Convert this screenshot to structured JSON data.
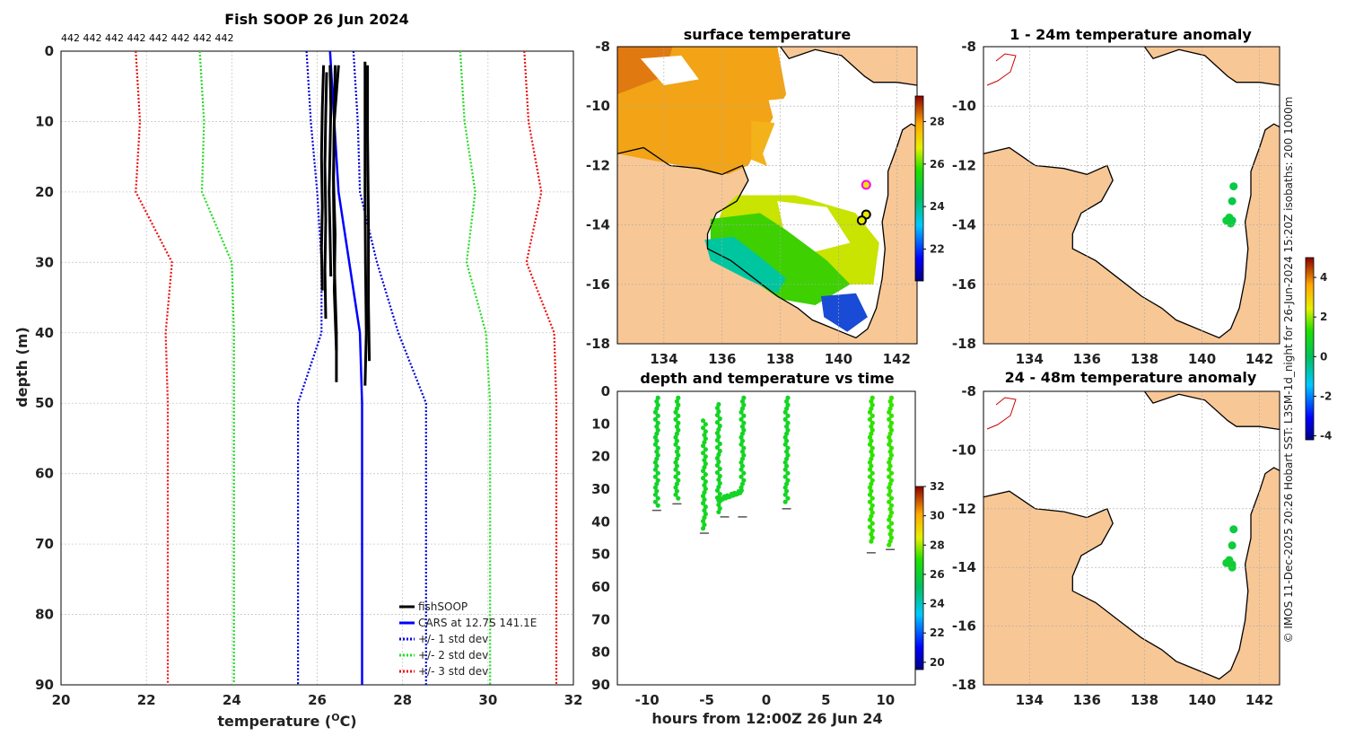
{
  "colors": {
    "land": "#f8c796",
    "fishsoop": "#000000",
    "cars": "#0000ff",
    "std1": "#0000dd",
    "std2": "#22dd22",
    "std3": "#ee1111",
    "grid": "#c8c8c8"
  },
  "credit": "© IMOS 11-Dec-2025 20:26 Hobart SST: L3SM-1d_night for 26-Jun-2024 15:20Z isobaths: 200  1000m",
  "chart_data": [
    {
      "id": "profile",
      "type": "line",
      "title": "Fish SOOP 26 Jun 2024",
      "subtitle": "442 442 442 442 442 442 442 442",
      "xlabel": "temperature (oC)",
      "ylabel": "depth (m)",
      "xlim": [
        20,
        32
      ],
      "ylim": [
        0,
        90
      ],
      "xticks": [
        20,
        22,
        24,
        26,
        28,
        30,
        32
      ],
      "yticks": [
        0,
        10,
        20,
        30,
        40,
        50,
        60,
        70,
        80,
        90
      ],
      "legend": [
        "fishSOOP",
        "CARS at 12.7S 141.1E",
        "+/- 1 std dev",
        "+/- 2 std dev",
        "+/- 3 std dev"
      ],
      "cars": {
        "depth": [
          0,
          10,
          20,
          30,
          40,
          50,
          90
        ],
        "temp": [
          26.3,
          26.4,
          26.5,
          26.75,
          27.0,
          27.05,
          27.05
        ]
      },
      "std": {
        "depth": [
          0,
          10,
          20,
          30,
          40,
          50,
          90
        ],
        "s1": [
          0.55,
          0.55,
          0.5,
          0.65,
          0.9,
          1.5,
          1.5
        ],
        "s2": [
          3.05,
          3.05,
          3.2,
          2.75,
          2.95,
          3.0,
          3.0
        ],
        "s3": [
          4.55,
          4.55,
          4.75,
          4.15,
          4.55,
          4.55,
          4.55
        ]
      },
      "casts": [
        {
          "depth": [
            2,
            8,
            15,
            22,
            28,
            34
          ],
          "temp": [
            26.15,
            26.12,
            26.1,
            26.12,
            26.1,
            26.12
          ]
        },
        {
          "depth": [
            3,
            9,
            16,
            24,
            31,
            38
          ],
          "temp": [
            26.22,
            26.2,
            26.18,
            26.2,
            26.18,
            26.2
          ]
        },
        {
          "depth": [
            2,
            10,
            18,
            26,
            34,
            42.5
          ],
          "temp": [
            26.42,
            26.4,
            26.38,
            26.42,
            26.4,
            26.45
          ]
        },
        {
          "depth": [
            2,
            8,
            14,
            20,
            26,
            32
          ],
          "temp": [
            26.3,
            26.32,
            26.3,
            26.28,
            26.3,
            26.32
          ]
        },
        {
          "depth": [
            2,
            6,
            10,
            20,
            30,
            40,
            47
          ],
          "temp": [
            26.5,
            26.45,
            26.4,
            26.38,
            26.4,
            26.45,
            26.45
          ]
        },
        {
          "depth": [
            1.5,
            10,
            20,
            30,
            40,
            47.5
          ],
          "temp": [
            27.12,
            27.12,
            27.12,
            27.13,
            27.15,
            27.12
          ]
        },
        {
          "depth": [
            2,
            12,
            24,
            36,
            44
          ],
          "temp": [
            27.18,
            27.18,
            27.2,
            27.2,
            27.22
          ]
        }
      ]
    },
    {
      "id": "sst-map",
      "type": "heatmap",
      "title": "surface temperature",
      "xlim": [
        132.4,
        142.7
      ],
      "ylim": [
        -18,
        -8
      ],
      "xticks": [
        134,
        136,
        138,
        140,
        142
      ],
      "yticks": [
        -8,
        -10,
        -12,
        -14,
        -16,
        -18
      ],
      "colorbar": {
        "min": 20.5,
        "max": 29.2,
        "ticks": [
          22,
          24,
          26,
          28
        ]
      },
      "markers": [
        [
          140.95,
          -12.65,
          "magenta"
        ],
        [
          140.95,
          -13.65,
          "black"
        ],
        [
          140.8,
          -13.85,
          "black"
        ]
      ]
    },
    {
      "id": "anom-1-24",
      "type": "scatter",
      "title": "1 - 24m temperature anomaly",
      "xlim": [
        132.4,
        142.7
      ],
      "ylim": [
        -18,
        -8
      ],
      "xticks": [
        134,
        136,
        138,
        140,
        142
      ],
      "yticks": [
        -8,
        -10,
        -12,
        -14,
        -16,
        -18
      ],
      "points": [
        [
          141.1,
          -12.7,
          0.3
        ],
        [
          141.05,
          -13.2,
          0.3
        ],
        [
          140.95,
          -13.75,
          0.6
        ],
        [
          141.05,
          -13.85,
          0.3
        ],
        [
          140.85,
          -13.85,
          0.5
        ],
        [
          141.0,
          -13.95,
          0.4
        ]
      ]
    },
    {
      "id": "anom-24-48",
      "type": "scatter",
      "title": "24 - 48m temperature anomaly",
      "xlim": [
        132.4,
        142.7
      ],
      "ylim": [
        -18,
        -8
      ],
      "xticks": [
        134,
        136,
        138,
        140,
        142
      ],
      "yticks": [
        -8,
        -10,
        -12,
        -14,
        -16,
        -18
      ],
      "points": [
        [
          141.1,
          -12.7,
          0.4
        ],
        [
          141.05,
          -13.25,
          0.5
        ],
        [
          140.95,
          -13.75,
          0.6
        ],
        [
          141.05,
          -13.9,
          0.5
        ],
        [
          140.85,
          -13.85,
          0.6
        ],
        [
          141.05,
          -14.0,
          0.6
        ]
      ],
      "colorbar": {
        "min": -4.2,
        "max": 5.0,
        "ticks": [
          -4,
          -2,
          0,
          2,
          4
        ]
      }
    },
    {
      "id": "depth-time",
      "type": "scatter",
      "title": "depth and temperature vs time",
      "xlabel": "hours from 12:00Z 26 Jun 24",
      "xlim": [
        -12.5,
        12.5
      ],
      "ylim": [
        0,
        90
      ],
      "xticks": [
        -10,
        -5,
        0,
        5,
        10
      ],
      "yticks": [
        0,
        10,
        20,
        30,
        40,
        50,
        60,
        70,
        80,
        90
      ],
      "colorbar": {
        "min": 19.5,
        "max": 32,
        "ticks": [
          20,
          22,
          24,
          26,
          28,
          30,
          32
        ]
      },
      "casts": [
        {
          "type": "v",
          "x": -9.2,
          "top": 2,
          "bottom": 35.5,
          "temp": 26.2
        },
        {
          "type": "v",
          "x": -7.5,
          "top": 2,
          "bottom": 33.5,
          "temp": 26.3
        },
        {
          "type": "v",
          "x": -5.2,
          "top": 9,
          "bottom": 42.5,
          "temp": 26.4
        },
        {
          "type": "v",
          "x": -4.0,
          "top": 4,
          "bottom": 38,
          "temp": 26.3
        },
        {
          "type": "v",
          "x": -2.0,
          "top": 2,
          "bottom": 30.5,
          "temp": 26.3
        },
        {
          "type": "v",
          "x": 1.7,
          "top": 2,
          "bottom": 35,
          "temp": 26.3
        },
        {
          "type": "v",
          "x": 8.8,
          "top": 2,
          "bottom": 47,
          "temp": 27.1
        },
        {
          "type": "v",
          "x": 10.4,
          "top": 2,
          "bottom": 47.5,
          "temp": 27.15
        }
      ],
      "bottom_marks": [
        [
          -9.2,
          36.5
        ],
        [
          -7.5,
          34.5
        ],
        [
          -5.2,
          43.5
        ],
        [
          -3.5,
          38.5
        ],
        [
          -2.0,
          38.5
        ],
        [
          1.7,
          36
        ],
        [
          8.8,
          49.5
        ],
        [
          10.4,
          48.5
        ]
      ]
    }
  ]
}
